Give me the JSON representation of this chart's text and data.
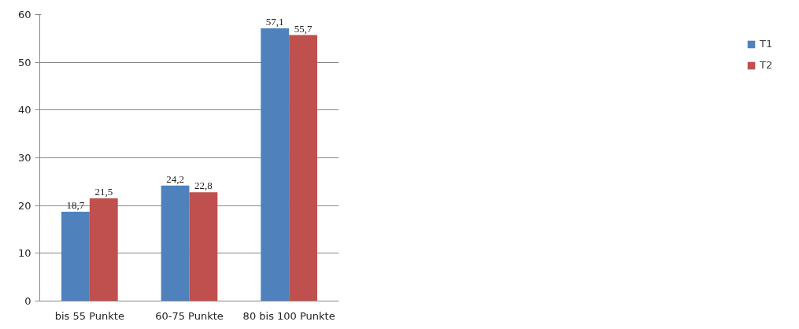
{
  "chart_data": {
    "type": "bar",
    "categories": [
      "bis 55 Punkte",
      "60-75 Punkte",
      "80 bis 100 Punkte"
    ],
    "series": [
      {
        "name": "T1",
        "color": "#4f81bd",
        "values": [
          18.7,
          24.2,
          57.1
        ],
        "value_labels": [
          "18,7",
          "24,2",
          "57,1"
        ]
      },
      {
        "name": "T2",
        "color": "#c0504d",
        "values": [
          21.5,
          22.8,
          55.7
        ],
        "value_labels": [
          "21,5",
          "22,8",
          "55,7"
        ]
      }
    ],
    "ylim": [
      0,
      60
    ],
    "yticks": [
      0,
      10,
      20,
      30,
      40,
      50,
      60
    ],
    "grid": "y",
    "legend": "right"
  }
}
